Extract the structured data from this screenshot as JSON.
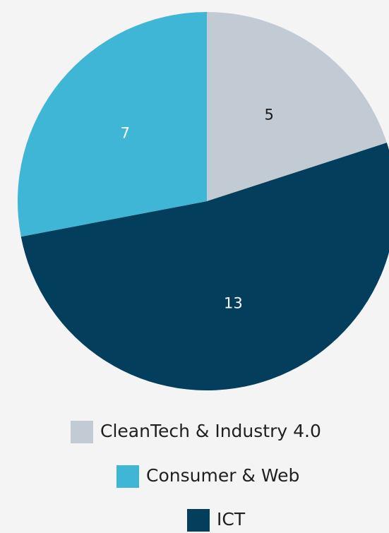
{
  "chart_data": {
    "type": "pie",
    "categories": [
      "CleanTech & Industry 4.0",
      "ICT",
      "Consumer & Web"
    ],
    "values": [
      5,
      13,
      7
    ],
    "colors": [
      "#c2cad3",
      "#033f5c",
      "#3fb6d6"
    ],
    "label_colors": [
      "#1a1a1a",
      "#ffffff",
      "#ffffff"
    ],
    "legend_order": [
      0,
      2,
      1
    ]
  }
}
